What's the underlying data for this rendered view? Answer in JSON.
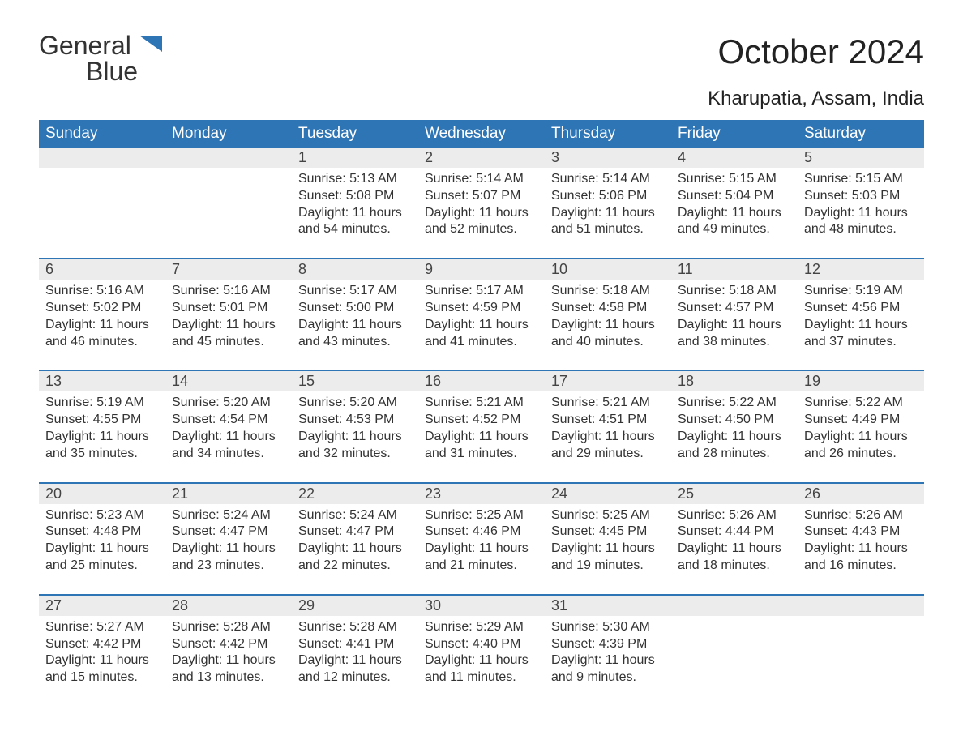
{
  "logo": {
    "word1": "General",
    "word2": "Blue",
    "flag_color": "#2e75b6"
  },
  "title": "October 2024",
  "location": "Kharupatia, Assam, India",
  "colors": {
    "header_bg": "#2e75b6",
    "header_text": "#ffffff",
    "daynum_bg": "#ececec",
    "rule": "#2e75b6",
    "body_text": "#333333",
    "page_bg": "#ffffff"
  },
  "fontsize": {
    "title": 42,
    "subtitle": 24,
    "th": 19,
    "daynum": 18,
    "body": 16
  },
  "weekdays": [
    "Sunday",
    "Monday",
    "Tuesday",
    "Wednesday",
    "Thursday",
    "Friday",
    "Saturday"
  ],
  "weeks": [
    [
      null,
      null,
      {
        "n": "1",
        "sr": "5:13 AM",
        "ss": "5:08 PM",
        "dl": "11 hours and 54 minutes."
      },
      {
        "n": "2",
        "sr": "5:14 AM",
        "ss": "5:07 PM",
        "dl": "11 hours and 52 minutes."
      },
      {
        "n": "3",
        "sr": "5:14 AM",
        "ss": "5:06 PM",
        "dl": "11 hours and 51 minutes."
      },
      {
        "n": "4",
        "sr": "5:15 AM",
        "ss": "5:04 PM",
        "dl": "11 hours and 49 minutes."
      },
      {
        "n": "5",
        "sr": "5:15 AM",
        "ss": "5:03 PM",
        "dl": "11 hours and 48 minutes."
      }
    ],
    [
      {
        "n": "6",
        "sr": "5:16 AM",
        "ss": "5:02 PM",
        "dl": "11 hours and 46 minutes."
      },
      {
        "n": "7",
        "sr": "5:16 AM",
        "ss": "5:01 PM",
        "dl": "11 hours and 45 minutes."
      },
      {
        "n": "8",
        "sr": "5:17 AM",
        "ss": "5:00 PM",
        "dl": "11 hours and 43 minutes."
      },
      {
        "n": "9",
        "sr": "5:17 AM",
        "ss": "4:59 PM",
        "dl": "11 hours and 41 minutes."
      },
      {
        "n": "10",
        "sr": "5:18 AM",
        "ss": "4:58 PM",
        "dl": "11 hours and 40 minutes."
      },
      {
        "n": "11",
        "sr": "5:18 AM",
        "ss": "4:57 PM",
        "dl": "11 hours and 38 minutes."
      },
      {
        "n": "12",
        "sr": "5:19 AM",
        "ss": "4:56 PM",
        "dl": "11 hours and 37 minutes."
      }
    ],
    [
      {
        "n": "13",
        "sr": "5:19 AM",
        "ss": "4:55 PM",
        "dl": "11 hours and 35 minutes."
      },
      {
        "n": "14",
        "sr": "5:20 AM",
        "ss": "4:54 PM",
        "dl": "11 hours and 34 minutes."
      },
      {
        "n": "15",
        "sr": "5:20 AM",
        "ss": "4:53 PM",
        "dl": "11 hours and 32 minutes."
      },
      {
        "n": "16",
        "sr": "5:21 AM",
        "ss": "4:52 PM",
        "dl": "11 hours and 31 minutes."
      },
      {
        "n": "17",
        "sr": "5:21 AM",
        "ss": "4:51 PM",
        "dl": "11 hours and 29 minutes."
      },
      {
        "n": "18",
        "sr": "5:22 AM",
        "ss": "4:50 PM",
        "dl": "11 hours and 28 minutes."
      },
      {
        "n": "19",
        "sr": "5:22 AM",
        "ss": "4:49 PM",
        "dl": "11 hours and 26 minutes."
      }
    ],
    [
      {
        "n": "20",
        "sr": "5:23 AM",
        "ss": "4:48 PM",
        "dl": "11 hours and 25 minutes."
      },
      {
        "n": "21",
        "sr": "5:24 AM",
        "ss": "4:47 PM",
        "dl": "11 hours and 23 minutes."
      },
      {
        "n": "22",
        "sr": "5:24 AM",
        "ss": "4:47 PM",
        "dl": "11 hours and 22 minutes."
      },
      {
        "n": "23",
        "sr": "5:25 AM",
        "ss": "4:46 PM",
        "dl": "11 hours and 21 minutes."
      },
      {
        "n": "24",
        "sr": "5:25 AM",
        "ss": "4:45 PM",
        "dl": "11 hours and 19 minutes."
      },
      {
        "n": "25",
        "sr": "5:26 AM",
        "ss": "4:44 PM",
        "dl": "11 hours and 18 minutes."
      },
      {
        "n": "26",
        "sr": "5:26 AM",
        "ss": "4:43 PM",
        "dl": "11 hours and 16 minutes."
      }
    ],
    [
      {
        "n": "27",
        "sr": "5:27 AM",
        "ss": "4:42 PM",
        "dl": "11 hours and 15 minutes."
      },
      {
        "n": "28",
        "sr": "5:28 AM",
        "ss": "4:42 PM",
        "dl": "11 hours and 13 minutes."
      },
      {
        "n": "29",
        "sr": "5:28 AM",
        "ss": "4:41 PM",
        "dl": "11 hours and 12 minutes."
      },
      {
        "n": "30",
        "sr": "5:29 AM",
        "ss": "4:40 PM",
        "dl": "11 hours and 11 minutes."
      },
      {
        "n": "31",
        "sr": "5:30 AM",
        "ss": "4:39 PM",
        "dl": "11 hours and 9 minutes."
      },
      null,
      null
    ]
  ],
  "labels": {
    "sunrise": "Sunrise: ",
    "sunset": "Sunset: ",
    "daylight": "Daylight: "
  }
}
